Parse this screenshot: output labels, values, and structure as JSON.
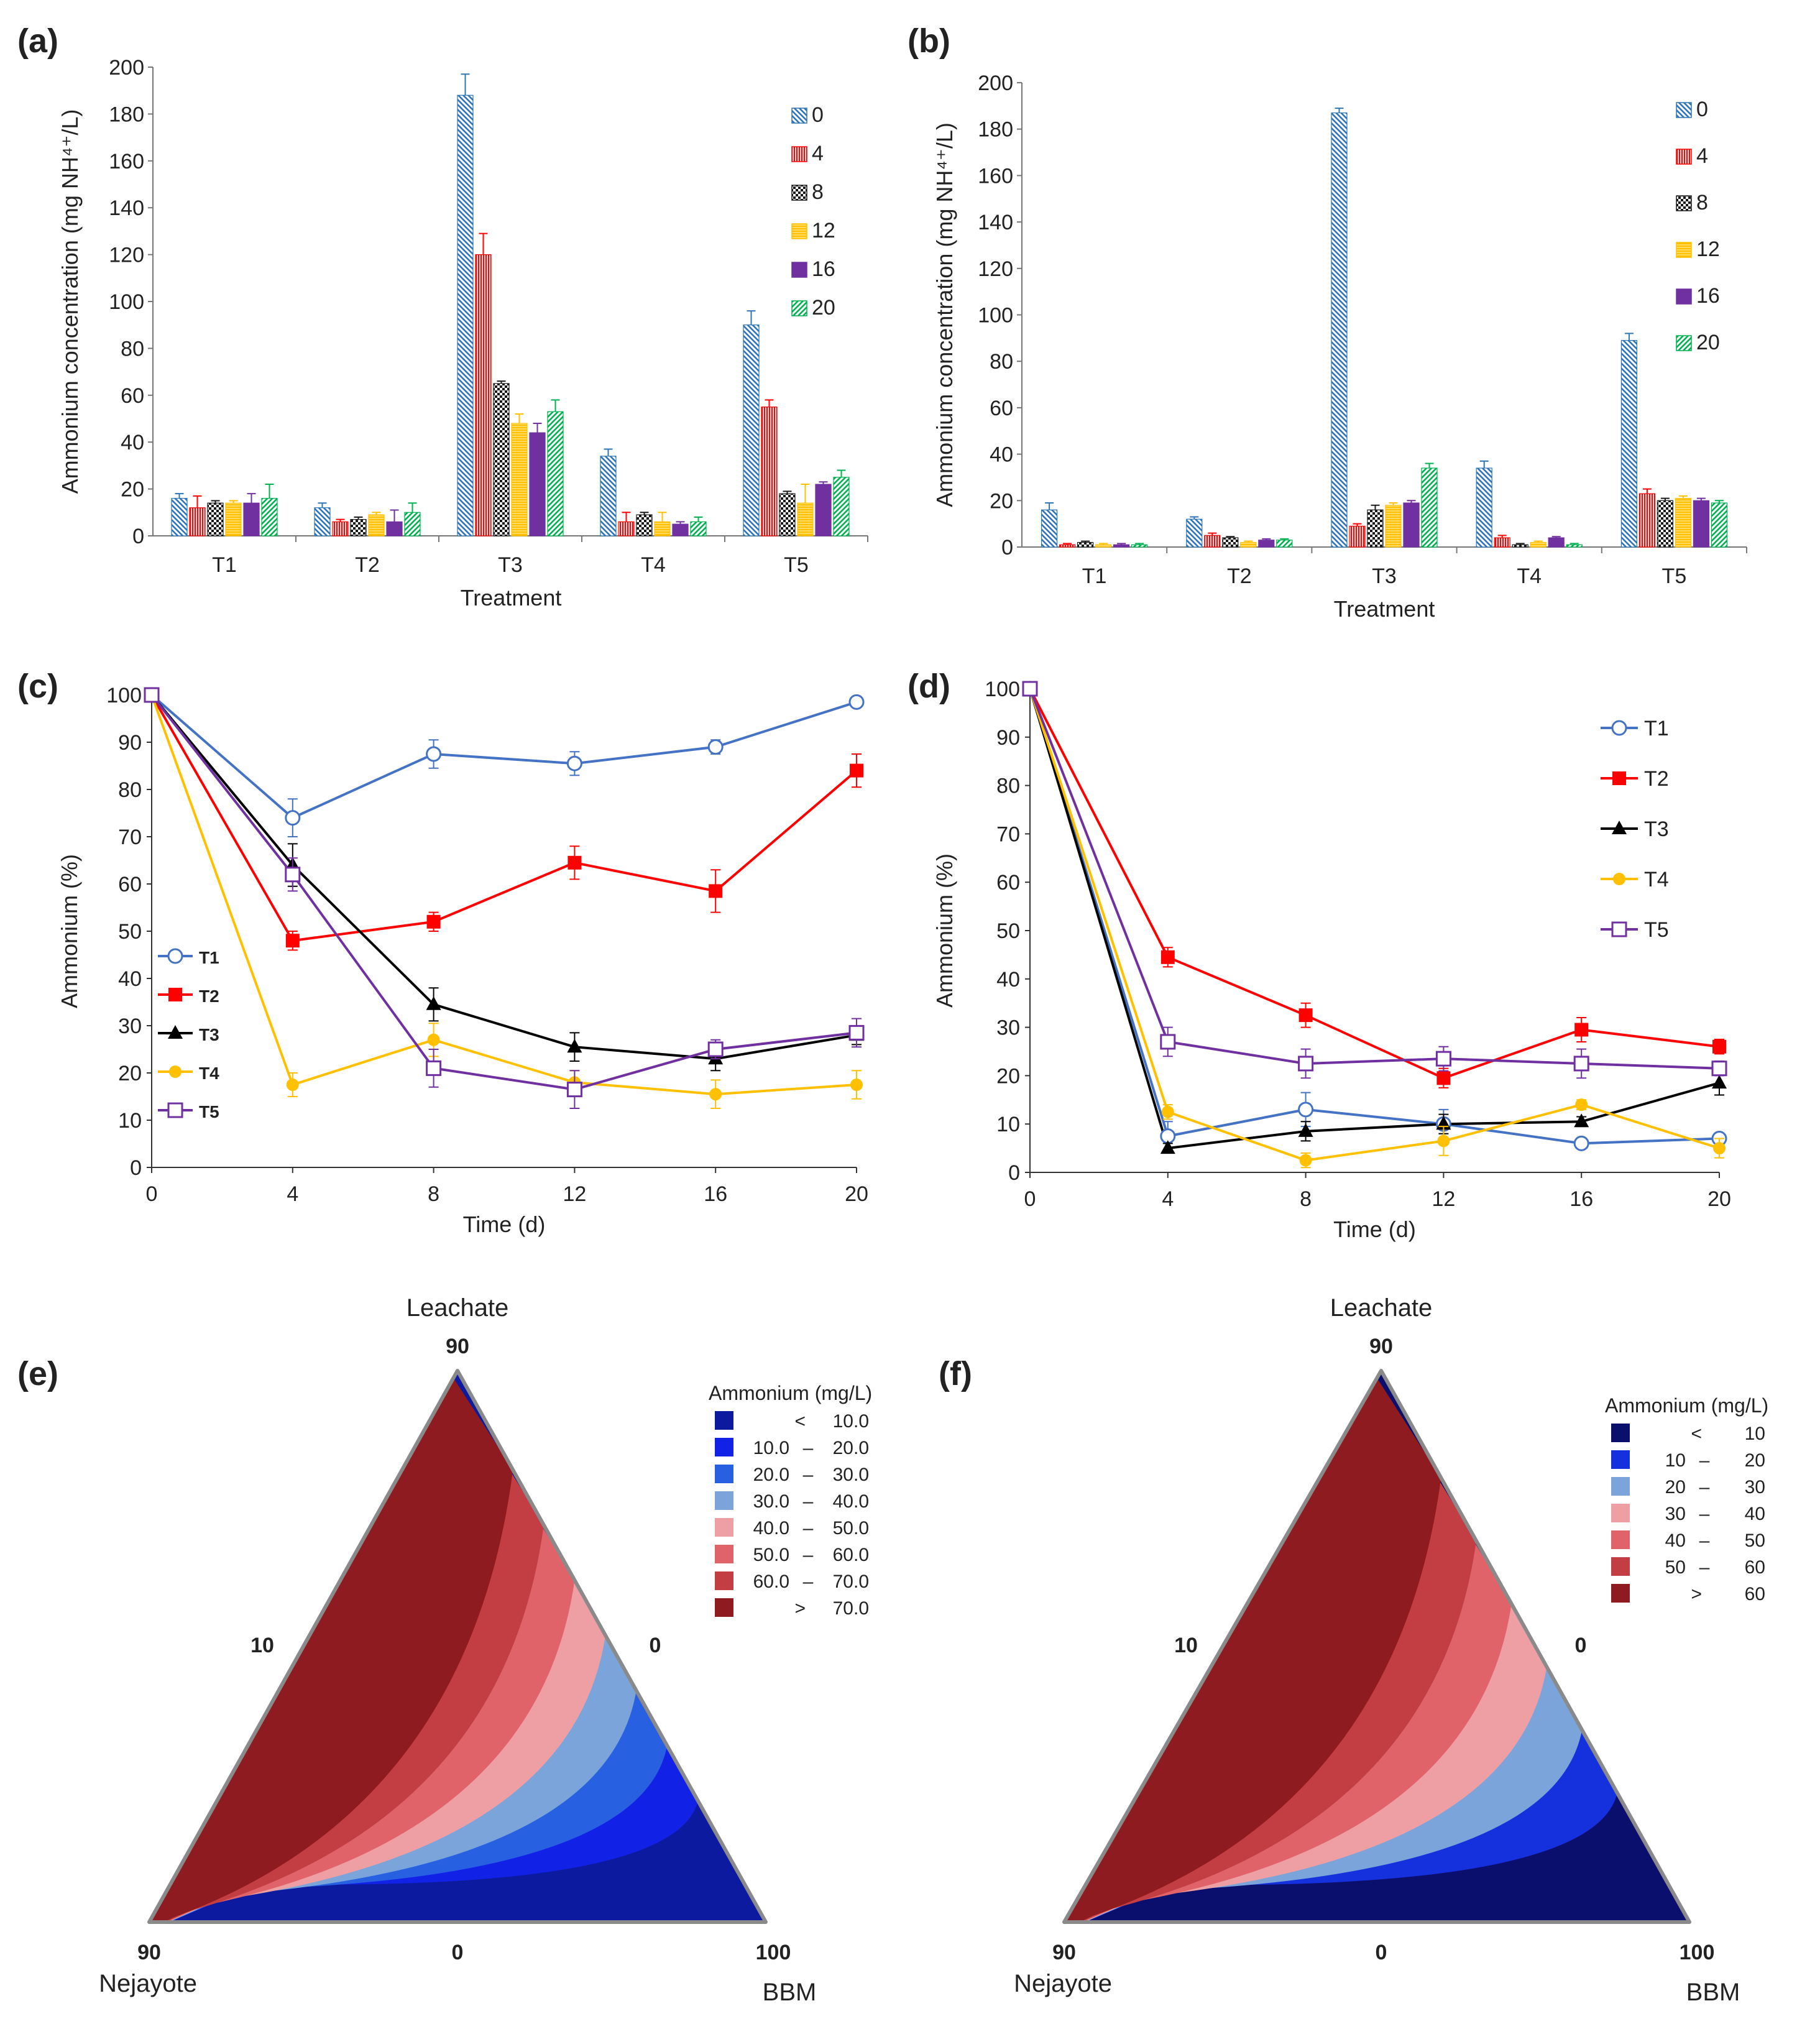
{
  "colors": {
    "t0": "#2e75b6",
    "t4": "#ff0000",
    "t8": "#1a1a1a",
    "t12": "#ffc000",
    "t16": "#7030a0",
    "t20": "#00b050",
    "T1": "#4472c4",
    "T2": "#ff0000",
    "T3": "#000000",
    "T4": "#ffc000",
    "T5": "#7030a0"
  },
  "chart_data": [
    {
      "id": "a",
      "panel_label": "(a)",
      "type": "bar",
      "title": "",
      "xlabel": "Treatment",
      "ylabel": "Ammonium concentration (mg NH⁴⁺/L)",
      "ylim": [
        0,
        200
      ],
      "yticks": [
        "0",
        "20",
        "40",
        "60",
        "80",
        "100",
        "120",
        "140",
        "160",
        "180",
        "200"
      ],
      "categories": [
        "T1",
        "T2",
        "T3",
        "T4",
        "T5"
      ],
      "legend_position": "top-right",
      "series": [
        {
          "name": "0",
          "values": [
            16,
            12,
            188,
            34,
            90
          ],
          "errors": [
            2,
            2,
            9,
            3,
            6
          ]
        },
        {
          "name": "4",
          "values": [
            12,
            6,
            120,
            6,
            55
          ],
          "errors": [
            5,
            1,
            9,
            4,
            3
          ]
        },
        {
          "name": "8",
          "values": [
            14,
            7,
            65,
            9,
            18
          ],
          "errors": [
            1,
            1,
            1,
            1,
            1
          ]
        },
        {
          "name": "12",
          "values": [
            14,
            9,
            48,
            6,
            14
          ],
          "errors": [
            1,
            1,
            4,
            4,
            8
          ]
        },
        {
          "name": "16",
          "values": [
            14,
            6,
            44,
            5,
            22
          ],
          "errors": [
            4,
            5,
            4,
            1,
            1
          ]
        },
        {
          "name": "20",
          "values": [
            16,
            10,
            53,
            6,
            25
          ],
          "errors": [
            6,
            4,
            5,
            2,
            3
          ]
        }
      ]
    },
    {
      "id": "b",
      "panel_label": "(b)",
      "type": "bar",
      "title": "",
      "xlabel": "Treatment",
      "ylabel": "Ammonium concentration (mg NH⁴⁺/L)",
      "ylim": [
        0,
        200
      ],
      "yticks": [
        "0",
        "20",
        "40",
        "60",
        "80",
        "100",
        "120",
        "140",
        "160",
        "180",
        "200"
      ],
      "categories": [
        "T1",
        "T2",
        "T3",
        "T4",
        "T5"
      ],
      "legend_position": "top-right",
      "series": [
        {
          "name": "0",
          "values": [
            16,
            12,
            187,
            34,
            89
          ],
          "errors": [
            3,
            1,
            2,
            3,
            3
          ]
        },
        {
          "name": "4",
          "values": [
            1,
            5,
            9,
            4,
            23
          ],
          "errors": [
            0.5,
            1,
            1,
            1,
            2
          ]
        },
        {
          "name": "8",
          "values": [
            2,
            4,
            16,
            1,
            20
          ],
          "errors": [
            0.5,
            0.5,
            2,
            0.5,
            1
          ]
        },
        {
          "name": "12",
          "values": [
            1,
            2,
            18,
            2,
            21
          ],
          "errors": [
            0.5,
            0.5,
            1,
            0.5,
            1
          ]
        },
        {
          "name": "16",
          "values": [
            1,
            3,
            19,
            4,
            20
          ],
          "errors": [
            0.5,
            0.5,
            1,
            0.5,
            1
          ]
        },
        {
          "name": "20",
          "values": [
            1,
            3,
            34,
            1,
            19
          ],
          "errors": [
            0.5,
            0.5,
            2,
            0.5,
            1
          ]
        }
      ]
    },
    {
      "id": "c",
      "panel_label": "(c)",
      "type": "line",
      "title": "",
      "xlabel": "Time (d)",
      "ylabel": "Ammonium (%)",
      "x": [
        0,
        4,
        8,
        12,
        16,
        20
      ],
      "xticks": [
        "0",
        "4",
        "8",
        "12",
        "16",
        "20"
      ],
      "ylim": [
        0,
        100
      ],
      "yticks": [
        "0",
        "10",
        "20",
        "30",
        "40",
        "50",
        "60",
        "70",
        "80",
        "90",
        "100"
      ],
      "legend_position": "bottom-left",
      "series": [
        {
          "name": "T1",
          "values": [
            100,
            74,
            87.5,
            85.5,
            89,
            98.5
          ],
          "errors": [
            0,
            4,
            3,
            2.5,
            1.5,
            1
          ]
        },
        {
          "name": "T2",
          "values": [
            100,
            48,
            52,
            64.5,
            58.5,
            84
          ],
          "errors": [
            0,
            2,
            2,
            3.5,
            4.5,
            3.5
          ]
        },
        {
          "name": "T3",
          "values": [
            100,
            64,
            34.5,
            25.5,
            23,
            28
          ],
          "errors": [
            0,
            4.5,
            3.5,
            3,
            2.5,
            2
          ]
        },
        {
          "name": "T4",
          "values": [
            100,
            17.5,
            27,
            18,
            15.5,
            17.5
          ],
          "errors": [
            0,
            2.5,
            3.5,
            2.5,
            3,
            3
          ]
        },
        {
          "name": "T5",
          "values": [
            100,
            62,
            21,
            16.5,
            25,
            28.5
          ],
          "errors": [
            0,
            3.5,
            4,
            4,
            2,
            3
          ]
        }
      ]
    },
    {
      "id": "d",
      "panel_label": "(d)",
      "type": "line",
      "title": "",
      "xlabel": "Time (d)",
      "ylabel": "Ammonium (%)",
      "x": [
        0,
        4,
        8,
        12,
        16,
        20
      ],
      "xticks": [
        "0",
        "4",
        "8",
        "12",
        "16",
        "20"
      ],
      "ylim": [
        0,
        100
      ],
      "yticks": [
        "0",
        "10",
        "20",
        "30",
        "40",
        "50",
        "60",
        "70",
        "80",
        "90",
        "100"
      ],
      "legend_position": "top-right",
      "series": [
        {
          "name": "T1",
          "values": [
            100,
            7.5,
            13,
            10,
            6,
            7
          ],
          "errors": [
            0,
            3,
            3.5,
            3,
            0.5,
            1
          ]
        },
        {
          "name": "T2",
          "values": [
            100,
            44.5,
            32.5,
            19.5,
            29.5,
            26
          ],
          "errors": [
            0,
            2,
            2.5,
            2,
            2.5,
            1.5
          ]
        },
        {
          "name": "T3",
          "values": [
            100,
            5,
            8.5,
            10,
            10.5,
            18.5
          ],
          "errors": [
            0,
            1,
            2,
            2,
            1,
            2.5
          ]
        },
        {
          "name": "T4",
          "values": [
            100,
            12.5,
            2.5,
            6.5,
            14,
            5
          ],
          "errors": [
            0,
            1.5,
            1.5,
            3,
            1,
            2
          ]
        },
        {
          "name": "T5",
          "values": [
            100,
            27,
            22.5,
            23.5,
            22.5,
            21.5
          ],
          "errors": [
            0,
            3,
            3,
            2.5,
            3,
            1.5
          ]
        }
      ]
    },
    {
      "id": "e",
      "panel_label": "(e)",
      "type": "ternary-contour",
      "vertex_labels": {
        "top": "Leachate",
        "left": "Nejayote",
        "right": "BBM"
      },
      "tick_labels": {
        "top": "90",
        "left_side": "10",
        "right_side": "0",
        "bottom_left": "90",
        "bottom_mid": "0",
        "bottom_right": "100"
      },
      "legend_title": "Ammonium (mg/L)",
      "levels": [
        {
          "lo": "<",
          "hi": "10.0",
          "color": "#0b1a9e"
        },
        {
          "lo": "10.0",
          "hi": "20.0",
          "color": "#1122e6"
        },
        {
          "lo": "20.0",
          "hi": "30.0",
          "color": "#2860e2"
        },
        {
          "lo": "30.0",
          "hi": "40.0",
          "color": "#7aa4da"
        },
        {
          "lo": "40.0",
          "hi": "50.0",
          "color": "#ee9fa3"
        },
        {
          "lo": "50.0",
          "hi": "60.0",
          "color": "#e06369"
        },
        {
          "lo": "60.0",
          "hi": "70.0",
          "color": "#c33e43"
        },
        {
          "lo": ">",
          "hi": "70.0",
          "color": "#8e1b1f"
        }
      ]
    },
    {
      "id": "f",
      "panel_label": "(f)",
      "type": "ternary-contour",
      "vertex_labels": {
        "top": "Leachate",
        "left": "Nejayote",
        "right": "BBM"
      },
      "tick_labels": {
        "top": "90",
        "left_side": "10",
        "right_side": "0",
        "bottom_left": "90",
        "bottom_mid": "0",
        "bottom_right": "100"
      },
      "legend_title": "Ammonium (mg/L)",
      "levels": [
        {
          "lo": "<",
          "hi": "10",
          "color": "#0a0f6e"
        },
        {
          "lo": "10",
          "hi": "20",
          "color": "#1530dd"
        },
        {
          "lo": "20",
          "hi": "30",
          "color": "#7aa4da"
        },
        {
          "lo": "30",
          "hi": "40",
          "color": "#ee9fa3"
        },
        {
          "lo": "40",
          "hi": "50",
          "color": "#e06369"
        },
        {
          "lo": "50",
          "hi": "60",
          "color": "#c33e43"
        },
        {
          "lo": ">",
          "hi": "60",
          "color": "#8e1b1f"
        }
      ]
    }
  ]
}
